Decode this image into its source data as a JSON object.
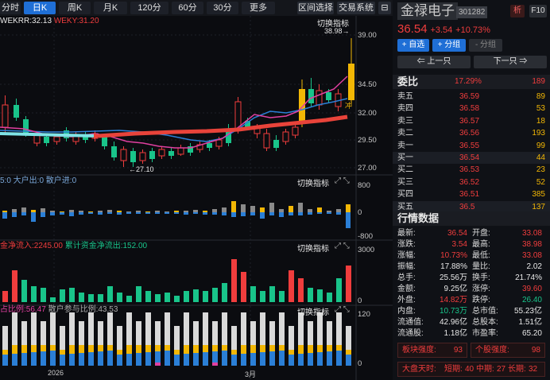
{
  "toolbar": {
    "tabs": [
      "分时",
      "日K",
      "周K",
      "月K",
      "120分",
      "60分",
      "30分",
      "更多"
    ],
    "active": "日K",
    "tools": [
      "区间选择",
      "交易系统"
    ]
  },
  "main_panel": {
    "indicator_label": "WEKRR:32.13",
    "indicator_label2": "WEKY:31.20",
    "switch_label": "切换指标",
    "high_marker": "38.98→",
    "low_marker": "←27.10",
    "y_ticks": [
      "39.00",
      "34.50",
      "32.00",
      "29.50",
      "27.00"
    ],
    "tail_mark": "冲",
    "colors": {
      "up": "#f03d3d",
      "down": "#19c48a",
      "limit": "#f2b705",
      "ma_red": "#e8433a",
      "ma_blue": "#2b7fd6",
      "ma_pink": "#e040a0",
      "ma_cyan": "#7fe3e6"
    }
  },
  "panel2": {
    "header": "5:0 大户出:0 散户进:0",
    "switch_label": "切换指标",
    "y_ticks": [
      "800",
      "0",
      "-800"
    ]
  },
  "panel3": {
    "header_a": "金净流入:2245.00",
    "header_b": "累计资金净流出:152.00",
    "switch_label": "切换指标",
    "y_ticks": [
      "3000",
      "0"
    ]
  },
  "panel4": {
    "header_a": "占比例:56.47",
    "header_b": "散户参与比例:43.53",
    "switch_label": "切换指标",
    "y_ticks": [
      "120",
      "0"
    ],
    "x_labels": [
      "2026",
      "3月"
    ]
  },
  "stock": {
    "name": "金禄电子",
    "code": "301282",
    "badge": "析",
    "f10": "F10",
    "price": "36.54",
    "change": "+3.54",
    "pct": "+10.73%",
    "add_self": "+ 自选",
    "add_group": "+ 分组",
    "sub_group": "- 分组",
    "prev": "⇐ 上一只",
    "next": "下一只 ⇒"
  },
  "orderbook": {
    "title": "委比",
    "ratio": "17.29%",
    "diff": "189",
    "rows": [
      {
        "label": "卖五",
        "price": "36.59",
        "vol": "89"
      },
      {
        "label": "卖四",
        "price": "36.58",
        "vol": "53"
      },
      {
        "label": "卖三",
        "price": "36.57",
        "vol": "18"
      },
      {
        "label": "卖二",
        "price": "36.56",
        "vol": "193"
      },
      {
        "label": "卖一",
        "price": "36.55",
        "vol": "99"
      },
      {
        "label": "买一",
        "price": "36.54",
        "vol": "44"
      },
      {
        "label": "买二",
        "price": "36.53",
        "vol": "23"
      },
      {
        "label": "买三",
        "price": "36.52",
        "vol": "52"
      },
      {
        "label": "买四",
        "price": "36.51",
        "vol": "385"
      },
      {
        "label": "买五",
        "price": "36.5",
        "vol": "137"
      }
    ]
  },
  "quote": {
    "title": "行情数据",
    "rows": [
      [
        {
          "k": "最新:",
          "v": "36.54",
          "c": "red"
        },
        {
          "k": "开盘:",
          "v": "33.08",
          "c": "red"
        }
      ],
      [
        {
          "k": "涨跌:",
          "v": "3.54",
          "c": "red"
        },
        {
          "k": "最高:",
          "v": "38.98",
          "c": "red"
        }
      ],
      [
        {
          "k": "涨幅:",
          "v": "10.73%",
          "c": "red"
        },
        {
          "k": "最低:",
          "v": "33.08",
          "c": "red"
        }
      ],
      [
        {
          "k": "振幅:",
          "v": "17.88%",
          "c": "white"
        },
        {
          "k": "量比:",
          "v": "2.02",
          "c": "white"
        }
      ],
      [
        {
          "k": "总手:",
          "v": "25.56万",
          "c": "white"
        },
        {
          "k": "换手:",
          "v": "21.74%",
          "c": "white"
        }
      ],
      [
        {
          "k": "金额:",
          "v": "9.25亿",
          "c": "white"
        },
        {
          "k": "涨停:",
          "v": "39.60",
          "c": "red"
        }
      ],
      [
        {
          "k": "外盘:",
          "v": "14.82万",
          "c": "red"
        },
        {
          "k": "跌停:",
          "v": "26.40",
          "c": "green"
        }
      ],
      [
        {
          "k": "内盘:",
          "v": "10.73万",
          "c": "green"
        },
        {
          "k": "总市值:",
          "v": "55.23亿",
          "c": "white"
        }
      ],
      [
        {
          "k": "流通值:",
          "v": "42.96亿",
          "c": "white"
        },
        {
          "k": "总股本:",
          "v": "1.51亿",
          "c": "white"
        }
      ],
      [
        {
          "k": "流通股:",
          "v": "1.18亿",
          "c": "white"
        },
        {
          "k": "市盈率:",
          "v": "65.20",
          "c": "white"
        }
      ]
    ]
  },
  "strength": {
    "block_label": "板块强度:",
    "block_value": "93",
    "stock_label": "个股强度:",
    "stock_value": "98",
    "market_label": "大盘天时:",
    "short_label": "短期:",
    "short_value": "40",
    "mid_label": "中期:",
    "mid_value": "27",
    "long_label": "长期:",
    "long_value": "32"
  }
}
